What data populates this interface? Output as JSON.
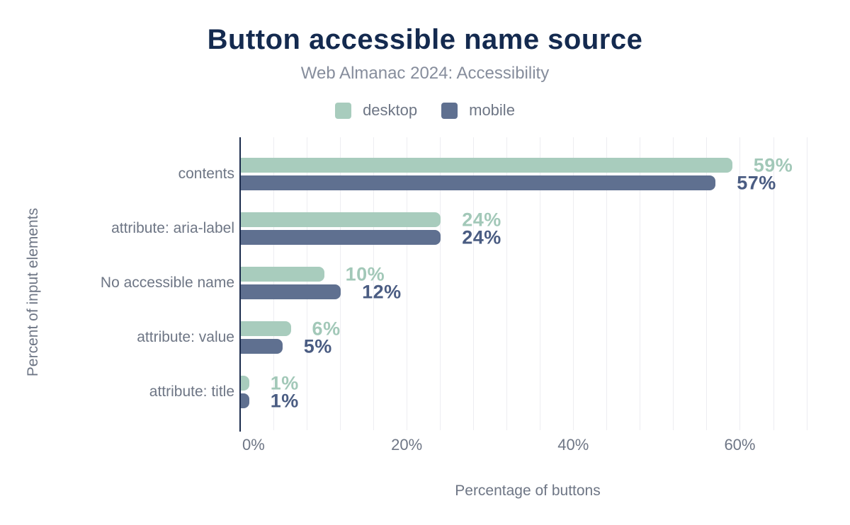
{
  "chart_data": {
    "type": "bar",
    "orientation": "horizontal",
    "title": "Button accessible name source",
    "subtitle": "Web Almanac 2024: Accessibility",
    "xlabel": "Percentage of buttons",
    "ylabel": "Percent of input elements",
    "categories": [
      "contents",
      "attribute: aria-label",
      "No accessible name",
      "attribute: value",
      "attribute: title"
    ],
    "series": [
      {
        "name": "desktop",
        "values": [
          59,
          24,
          10,
          6,
          1
        ],
        "color": "#a8ccbd",
        "label_color": "#a2c8b8"
      },
      {
        "name": "mobile",
        "values": [
          57,
          24,
          12,
          5,
          1
        ],
        "color": "#5f7090",
        "label_color": "#4a5c82"
      }
    ],
    "value_labels": [
      [
        "59%",
        "57%"
      ],
      [
        "24%",
        "24%"
      ],
      [
        "10%",
        "12%"
      ],
      [
        "6%",
        "5%"
      ],
      [
        "1%",
        "1%"
      ]
    ],
    "x_ticks": [
      {
        "label": "0%",
        "value": 0
      },
      {
        "label": "20%",
        "value": 20
      },
      {
        "label": "40%",
        "value": 40
      },
      {
        "label": "60%",
        "value": 60
      }
    ],
    "xlim": [
      0,
      68
    ],
    "grid": {
      "on": true,
      "minor_step_percent": 4,
      "color": "#ededf1"
    },
    "legend_position": "top",
    "axis_color": "#1b2b4c",
    "title_color": "#142a4f",
    "subtitle_color": "#868d9c",
    "text_color": "#6e7685",
    "background_color": "#ffffff"
  }
}
